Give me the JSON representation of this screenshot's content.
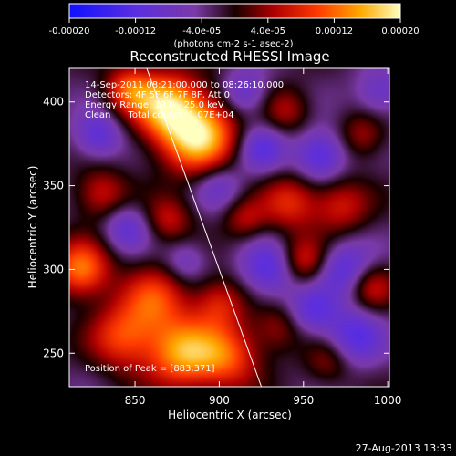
{
  "chart_data": {
    "type": "heatmap",
    "title": "Reconstructed RHESSI Image",
    "xlabel": "Heliocentric X (arcsec)",
    "ylabel": "Heliocentric Y (arcsec)",
    "xlim": [
      811,
      1001
    ],
    "ylim": [
      230,
      420
    ],
    "xticks": [
      850,
      900,
      950,
      1000
    ],
    "yticks": [
      250,
      300,
      350,
      400
    ],
    "colorbar": {
      "ticks": [
        "-0.00020",
        "-0.00012",
        "-4.0e-05",
        "4.0e-05",
        "0.00012",
        "0.00020"
      ],
      "range": [
        -0.0002,
        0.0002
      ],
      "units": "(photons cm-2 s-1 asec-2)"
    },
    "annotations": [
      "14-Sep-2011 08:21:00.000 to 08:26:10.000",
      "Detectors: 4F 5F 6F 7F 8F, Att 0",
      "Energy Range: 12.0 - 25.0 keV",
      "Clean      Total counts: 1.07E+04"
    ],
    "peak_label": "Position of Peak = [883,371]",
    "peak": [
      883,
      371
    ],
    "limb_line": [
      [
        857,
        420
      ],
      [
        925,
        230
      ]
    ],
    "blobs": [
      {
        "x": 888,
        "y": 380,
        "v": 1.0,
        "s": 16
      },
      {
        "x": 868,
        "y": 398,
        "v": 0.85,
        "s": 14
      },
      {
        "x": 846,
        "y": 408,
        "v": 0.55,
        "s": 10
      },
      {
        "x": 818,
        "y": 300,
        "v": 0.75,
        "s": 12
      },
      {
        "x": 830,
        "y": 345,
        "v": 0.45,
        "s": 11
      },
      {
        "x": 843,
        "y": 260,
        "v": 0.6,
        "s": 14
      },
      {
        "x": 878,
        "y": 250,
        "v": 0.8,
        "s": 15
      },
      {
        "x": 905,
        "y": 248,
        "v": 0.6,
        "s": 14
      },
      {
        "x": 862,
        "y": 283,
        "v": 0.55,
        "s": 14
      },
      {
        "x": 900,
        "y": 280,
        "v": 0.45,
        "s": 11
      },
      {
        "x": 870,
        "y": 330,
        "v": 0.4,
        "s": 10
      },
      {
        "x": 950,
        "y": 305,
        "v": 0.5,
        "s": 10
      },
      {
        "x": 942,
        "y": 340,
        "v": 0.5,
        "s": 12
      },
      {
        "x": 972,
        "y": 338,
        "v": 0.45,
        "s": 12
      },
      {
        "x": 990,
        "y": 290,
        "v": 0.45,
        "s": 10
      },
      {
        "x": 940,
        "y": 395,
        "v": 0.35,
        "s": 10
      },
      {
        "x": 985,
        "y": 380,
        "v": 0.35,
        "s": 10
      },
      {
        "x": 915,
        "y": 330,
        "v": 0.35,
        "s": 9
      },
      {
        "x": 935,
        "y": 265,
        "v": 0.3,
        "s": 10
      },
      {
        "x": 965,
        "y": 245,
        "v": 0.3,
        "s": 10
      },
      {
        "x": 925,
        "y": 372,
        "v": -0.45,
        "s": 10
      },
      {
        "x": 960,
        "y": 368,
        "v": -0.55,
        "s": 11
      },
      {
        "x": 915,
        "y": 405,
        "v": -0.4,
        "s": 10
      },
      {
        "x": 828,
        "y": 380,
        "v": -0.45,
        "s": 10
      },
      {
        "x": 845,
        "y": 325,
        "v": -0.4,
        "s": 10
      },
      {
        "x": 900,
        "y": 350,
        "v": -0.35,
        "s": 10
      },
      {
        "x": 930,
        "y": 300,
        "v": -0.5,
        "s": 12
      },
      {
        "x": 975,
        "y": 300,
        "v": -0.5,
        "s": 12
      },
      {
        "x": 980,
        "y": 260,
        "v": -0.5,
        "s": 12
      },
      {
        "x": 955,
        "y": 275,
        "v": -0.4,
        "s": 10
      },
      {
        "x": 995,
        "y": 405,
        "v": -0.35,
        "s": 10
      },
      {
        "x": 880,
        "y": 305,
        "v": -0.3,
        "s": 9
      }
    ]
  },
  "footer": {
    "timestamp": "27-Aug-2013 13:33"
  }
}
